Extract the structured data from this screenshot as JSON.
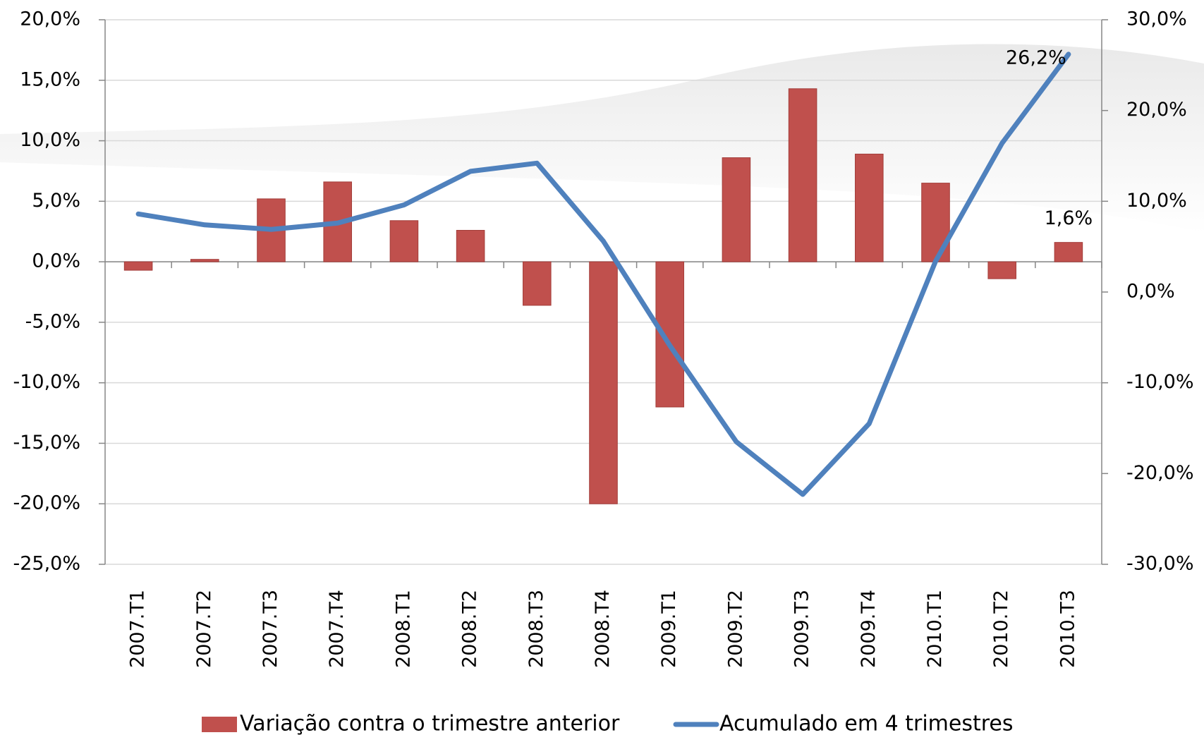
{
  "chart_data": {
    "type": "bar-line",
    "categories": [
      "2007.T1",
      "2007.T2",
      "2007.T3",
      "2007.T4",
      "2008.T1",
      "2008.T2",
      "2008.T3",
      "2008.T4",
      "2009.T1",
      "2009.T2",
      "2009.T3",
      "2009.T4",
      "2010.T1",
      "2010.T2",
      "2010.T3"
    ],
    "series": [
      {
        "name": "Variação contra o trimestre anterior",
        "type": "bar",
        "color": "#c0504d",
        "values": [
          -0.7,
          0.2,
          5.2,
          6.6,
          3.4,
          2.6,
          -3.6,
          -20.0,
          -12.0,
          8.6,
          14.3,
          8.9,
          6.5,
          -1.4,
          1.6
        ],
        "value_labels": [
          null,
          null,
          null,
          null,
          null,
          null,
          null,
          null,
          null,
          null,
          null,
          null,
          null,
          null,
          "1,6%"
        ]
      },
      {
        "name": "Acumulado em 4 trimestres",
        "type": "line",
        "axis": "y2",
        "color": "#4f81bd",
        "values": [
          8.6,
          7.4,
          6.9,
          7.6,
          9.6,
          13.3,
          14.2,
          5.6,
          -5.9,
          -16.5,
          -22.3,
          -14.5,
          3.4,
          16.4,
          26.2
        ],
        "value_labels": [
          null,
          null,
          null,
          null,
          null,
          null,
          null,
          null,
          null,
          null,
          null,
          null,
          null,
          null,
          "26,2%"
        ]
      }
    ],
    "ylim": [
      -25,
      20
    ],
    "yticks": [
      {
        "value": -25,
        "label": "-25,0%"
      },
      {
        "value": -20,
        "label": "-20,0%"
      },
      {
        "value": -15,
        "label": "-15,0%"
      },
      {
        "value": -10,
        "label": "-10,0%"
      },
      {
        "value": -5,
        "label": "-5,0%"
      },
      {
        "value": 0,
        "label": "0,0%"
      },
      {
        "value": 5,
        "label": "5,0%"
      },
      {
        "value": 10,
        "label": "10,0%"
      },
      {
        "value": 15,
        "label": "15,0%"
      },
      {
        "value": 20,
        "label": "20,0%"
      }
    ],
    "y2lim": [
      -30,
      30
    ],
    "y2ticks": [
      {
        "value": -30,
        "label": "-30,0%"
      },
      {
        "value": -20,
        "label": "-20,0%"
      },
      {
        "value": -10,
        "label": "-10,0%"
      },
      {
        "value": 0,
        "label": "0,0%"
      },
      {
        "value": 10,
        "label": "10,0%"
      },
      {
        "value": 20,
        "label": "20,0%"
      },
      {
        "value": 30,
        "label": "30,0%"
      }
    ],
    "grid": true
  }
}
